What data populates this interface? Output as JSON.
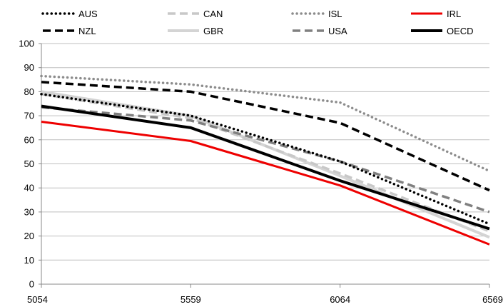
{
  "chart_data": {
    "type": "line",
    "title": "",
    "xlabel": "",
    "ylabel": "",
    "x": [
      "5054",
      "5559",
      "6064",
      "6569"
    ],
    "ylim": [
      0,
      100
    ],
    "yticks": [
      0,
      10,
      20,
      30,
      40,
      50,
      60,
      70,
      80,
      90,
      100
    ],
    "grid": true,
    "legend_position": "top",
    "series": [
      {
        "name": "AUS",
        "values": [
          79,
          70,
          51,
          25
        ],
        "color": "#000000",
        "style": "dotted"
      },
      {
        "name": "CAN",
        "values": [
          79,
          69,
          46,
          22
        ],
        "color": "#c8c8c8",
        "style": "dashed"
      },
      {
        "name": "ISL",
        "values": [
          86.5,
          83,
          75.5,
          47
        ],
        "color": "#8c8c8c",
        "style": "dotted"
      },
      {
        "name": "IRL",
        "values": [
          67.5,
          59.5,
          41,
          16.5
        ],
        "color": "#ee0000",
        "style": "solid"
      },
      {
        "name": "NZL",
        "values": [
          84,
          80,
          67,
          39
        ],
        "color": "#000000",
        "style": "dashed"
      },
      {
        "name": "GBR",
        "values": [
          80,
          70,
          45,
          19.5
        ],
        "color": "#d4d4d4",
        "style": "solid"
      },
      {
        "name": "USA",
        "values": [
          73.5,
          68,
          51,
          30
        ],
        "color": "#808080",
        "style": "dashed"
      },
      {
        "name": "OECD",
        "values": [
          74,
          65,
          43,
          23
        ],
        "color": "#000000",
        "style": "solid"
      }
    ]
  }
}
